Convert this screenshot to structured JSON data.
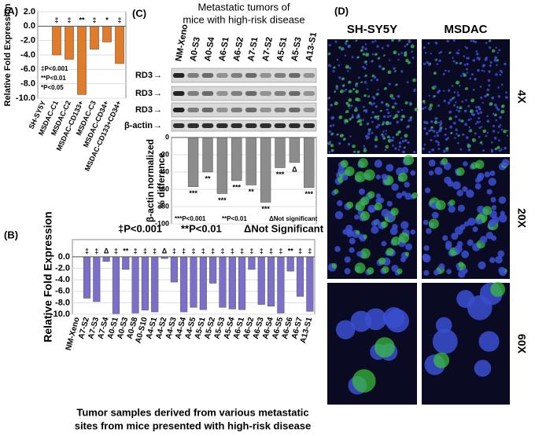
{
  "chart_data": [
    {
      "type": "bar",
      "label": "(A)",
      "ylabel": "Relative Fold Expression",
      "color": "#e07b2a",
      "categories": [
        "SH-SY5Y",
        "MSDAC-C1",
        "MSDAC-C2",
        "MSDAC-CD133+",
        "MSDAC-C3",
        "MSDAC-CD34+",
        "MSDAC-CD133+CD34+"
      ],
      "values": [
        0,
        -4,
        -4.6,
        -9.5,
        -3.2,
        -2.2,
        -5.2
      ],
      "annotations": [
        null,
        "‡",
        "‡",
        "**",
        "‡",
        "*",
        "‡"
      ],
      "legend": [
        "‡P<0.001",
        "**P<0.01",
        "*P<0.05"
      ],
      "ylim": [
        -10,
        2
      ],
      "yticks": [
        {
          "value": -10,
          "label": "-10.0"
        },
        {
          "value": -8,
          "label": "-8.0"
        },
        {
          "value": -6,
          "label": "-6.0"
        },
        {
          "value": -4,
          "label": "-4.0"
        },
        {
          "value": -2,
          "label": "-2.0"
        },
        {
          "value": 0,
          "label": "0.0"
        },
        {
          "value": 2,
          "label": "2.0"
        }
      ]
    },
    {
      "type": "bar",
      "label": "(B)",
      "ylabel": "Relative Fold Expression",
      "color": "#7b6fc9",
      "xlabel": [
        "Tumor samples derived from various metastatic",
        "sites from mice presented with high-risk disease"
      ],
      "categories": [
        "NM-Xeno",
        "A7-S2",
        "A7-S3",
        "A7-S4",
        "A0-S1",
        "A0-S3",
        "A0-S8",
        "A0-S10",
        "A4-S1",
        "A4-S2",
        "A4-S3",
        "A4-S4",
        "A4-S5",
        "A5-S1",
        "A5-S2",
        "A5-S3",
        "A5-S4",
        "A6-S1",
        "A6-S2",
        "A6-S3",
        "A6-S4",
        "A6-S5",
        "A6-S6",
        "A6-S7",
        "A13-S1"
      ],
      "values": [
        0,
        -7.2,
        -7.8,
        -0.8,
        -9.9,
        -2.2,
        -9.8,
        -9.3,
        -9.6,
        -0.3,
        -4.4,
        -9.6,
        -8.8,
        -9.2,
        -4.6,
        -8.8,
        -9.1,
        -9.2,
        -2.2,
        -8.3,
        -8.6,
        -9.8,
        -2.5,
        -6.9,
        -9.5
      ],
      "annotations": [
        null,
        "‡",
        "‡",
        "Δ",
        "‡",
        "**",
        "‡",
        "‡",
        "‡",
        "Δ",
        "‡",
        "‡",
        "‡",
        "‡",
        "‡",
        "‡",
        "‡",
        "‡",
        "‡",
        "‡",
        "‡",
        "‡",
        "**",
        "‡",
        "‡"
      ],
      "legend": [
        "‡P<0.001",
        "**P<0.01",
        "ΔNot Significant"
      ],
      "ylim": [
        -10,
        3
      ],
      "yticks": [
        {
          "value": -10,
          "label": "-10.0"
        },
        {
          "value": -8,
          "label": "-8.0"
        },
        {
          "value": -6,
          "label": "-6.0"
        },
        {
          "value": -4,
          "label": "-4.0"
        },
        {
          "value": -2,
          "label": "-2.0"
        },
        {
          "value": 0,
          "label": "0.0"
        }
      ]
    },
    {
      "type": "bar",
      "label": "(C)",
      "title": [
        "Metastatic tumors of",
        "mice with high-risk disease"
      ],
      "ylabel": [
        "β-actin normalized",
        "% difference"
      ],
      "color": "#8c8c8c",
      "categories": [
        "NM-Xeno",
        "A0-S3",
        "A0-S4",
        "A6-S1",
        "A6-S2",
        "A7-S1",
        "A7-S2",
        "A5-S1",
        "A5-S3",
        "A13-S1"
      ],
      "blot_rows": [
        "RD3",
        "RD3",
        "RD3",
        "β-actin"
      ],
      "values": [
        0,
        -57,
        -40,
        -65,
        -50,
        -55,
        -75,
        -35,
        -29,
        -58
      ],
      "annotations": [
        null,
        "***",
        "**",
        "***",
        "***",
        "**",
        "***",
        "***",
        "Δ",
        "***"
      ],
      "legend": [
        "***P<0.001",
        "**P<0.01",
        "ΔNot significant"
      ],
      "ylim": [
        -100,
        0
      ],
      "yticks": [
        -100,
        -80,
        -60,
        -40,
        -20,
        0
      ]
    }
  ],
  "micrographs": {
    "label": "(D)",
    "columns": [
      "SH-SY5Y",
      "MSDAC"
    ],
    "rows": [
      "4X",
      "20X",
      "60X"
    ]
  }
}
